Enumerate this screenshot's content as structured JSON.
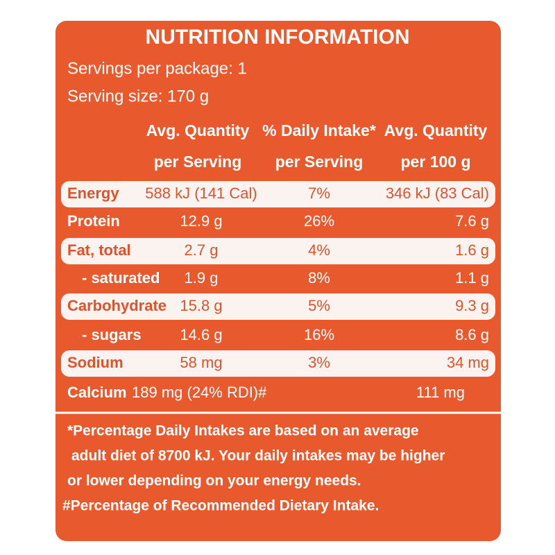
{
  "header": {
    "title": "NUTRITION INFORMATION",
    "servings": "Servings per package: 1",
    "serving_size": "Serving size: 170 g"
  },
  "table": {
    "columns": [
      [
        "Avg. Quantity",
        "per Serving"
      ],
      [
        "% Daily Intake*",
        "per Serving"
      ],
      [
        "Avg. Quantity",
        "per 100 g"
      ]
    ],
    "rows": [
      [
        "Energy",
        "588 kJ (141 Cal)",
        "7%",
        "346 kJ (83 Cal)"
      ],
      [
        "Protein",
        "12.9 g",
        "26%",
        "7.6 g"
      ],
      [
        "Fat, total",
        "2.7 g",
        "4%",
        "1.6 g"
      ],
      [
        "- saturated",
        "1.9 g",
        "8%",
        "1.1 g"
      ],
      [
        "Carbohydrate",
        "15.8 g",
        "5%",
        "9.3 g"
      ],
      [
        "- sugars",
        "14.6 g",
        "16%",
        "8.6 g"
      ],
      [
        "Sodium",
        "58 mg",
        "3%",
        "34 mg"
      ]
    ],
    "calcium": {
      "name": "Calcium",
      "per_serving": "189 mg (24% RDI)#",
      "per_100g": "111 mg"
    }
  },
  "footnotes": [
    "*Percentage Daily Intakes are based on an average",
    "adult diet of 8700 kJ. Your daily intakes may be higher",
    "or lower depending on your energy needs.",
    "#Percentage of Recommended Dietary Intake."
  ]
}
